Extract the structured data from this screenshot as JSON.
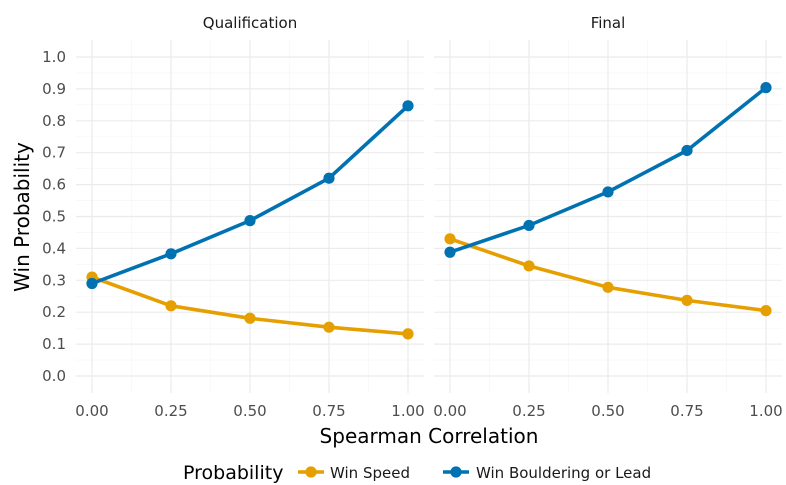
{
  "chart_data": {
    "type": "line",
    "xlabel": "Spearman Correlation",
    "ylabel": "Win Probability",
    "ylim": [
      0,
      1
    ],
    "xlim": [
      0,
      1
    ],
    "grid": true,
    "legend": {
      "title": "Probability",
      "placement": "bottom",
      "entries": [
        "Win Speed",
        "Win Bouldering or Lead"
      ]
    },
    "x_ticks": [
      "0.00",
      "0.25",
      "0.50",
      "0.75",
      "1.00"
    ],
    "y_ticks": [
      "0.0",
      "0.1",
      "0.2",
      "0.3",
      "0.4",
      "0.5",
      "0.6",
      "0.7",
      "0.8",
      "0.9",
      "1.0"
    ],
    "panels": [
      {
        "title": "Qualification",
        "x": [
          0,
          0.25,
          0.5,
          0.75,
          1.0
        ],
        "series": [
          {
            "name": "Win Speed",
            "color": "#E69F00",
            "values": [
              0.31,
              0.22,
              0.181,
              0.153,
              0.132
            ]
          },
          {
            "name": "Win Bouldering or Lead",
            "color": "#0072B2",
            "values": [
              0.29,
              0.383,
              0.487,
              0.62,
              0.847
            ]
          }
        ]
      },
      {
        "title": "Final",
        "x": [
          0,
          0.25,
          0.5,
          0.75,
          1.0
        ],
        "series": [
          {
            "name": "Win Speed",
            "color": "#E69F00",
            "values": [
              0.43,
              0.345,
              0.278,
              0.237,
              0.205
            ]
          },
          {
            "name": "Win Bouldering or Lead",
            "color": "#0072B2",
            "values": [
              0.388,
              0.472,
              0.577,
              0.707,
              0.904
            ]
          }
        ]
      }
    ]
  }
}
